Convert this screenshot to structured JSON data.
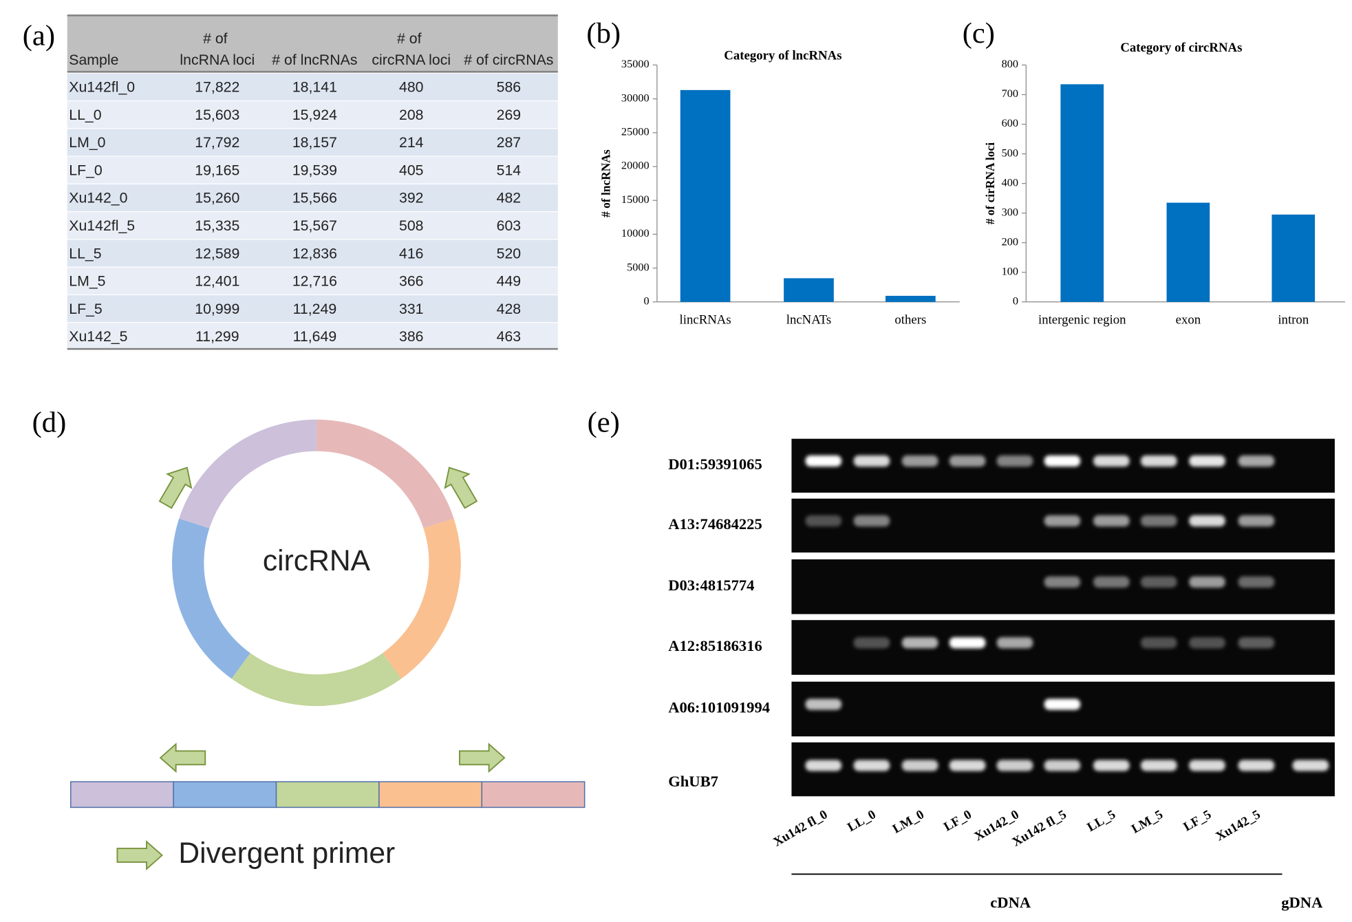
{
  "panel_labels": [
    "(a)",
    "(b)",
    "(c)",
    "(d)",
    "(e)"
  ],
  "table": {
    "header": [
      "Sample",
      "# of lncRNA loci",
      "# of lncRNAs",
      "# of circRNA loci",
      "# of circRNAs"
    ],
    "rows": [
      [
        "Xu142fl_0",
        "17,822",
        "18,141",
        "480",
        "586"
      ],
      [
        "LL_0",
        "15,603",
        "15,924",
        "208",
        "269"
      ],
      [
        "LM_0",
        "17,792",
        "18,157",
        "214",
        "287"
      ],
      [
        "LF_0",
        "19,165",
        "19,539",
        "405",
        "514"
      ],
      [
        "Xu142_0",
        "15,260",
        "15,566",
        "392",
        "482"
      ],
      [
        "Xu142fl_5",
        "15,335",
        "15,567",
        "508",
        "603"
      ],
      [
        "LL_5",
        "12,589",
        "12,836",
        "416",
        "520"
      ],
      [
        "LM_5",
        "12,401",
        "12,716",
        "366",
        "449"
      ],
      [
        "LF_5",
        "10,999",
        "11,249",
        "331",
        "428"
      ],
      [
        "Xu142_5",
        "11,299",
        "11,649",
        "386",
        "463"
      ]
    ]
  },
  "chart_data": [
    {
      "type": "bar",
      "title": "Category of lncRNAs",
      "y_label": "# of lncRNAs",
      "categories": [
        "lincRNAs",
        "lncNATs",
        "others"
      ],
      "values": [
        31300,
        3500,
        900
      ],
      "color": "#0070c0",
      "ylim": [
        0,
        35000
      ],
      "yticks": [
        0,
        5000,
        10000,
        15000,
        20000,
        25000,
        30000,
        35000
      ]
    },
    {
      "type": "bar",
      "title": "Category of circRNAs",
      "y_label": "# of cirRNA loci",
      "categories": [
        "intergenic region",
        "exon",
        "intron"
      ],
      "values": [
        735,
        335,
        295
      ],
      "color": "#0070c0",
      "ylim": [
        0,
        800
      ],
      "yticks": [
        0,
        100,
        200,
        300,
        400,
        500,
        600,
        700,
        800
      ]
    }
  ],
  "diagram": {
    "center_label": "circRNA",
    "legend": "Divergent primer"
  },
  "gel": {
    "markers": [
      "D01:59391065",
      "A13:74684225",
      "D03:4815774",
      "A12:85186316",
      "A06:101091994",
      "GhUB7"
    ],
    "lanes": [
      "Xu142 fl_0",
      "LL_0",
      "LM_0",
      "LF_0",
      "Xu142_0",
      "Xu142 fl_5",
      "LL_5",
      "LM_5",
      "LF_5",
      "Xu142_5"
    ],
    "groups": [
      "cDNA",
      "gDNA"
    ]
  }
}
